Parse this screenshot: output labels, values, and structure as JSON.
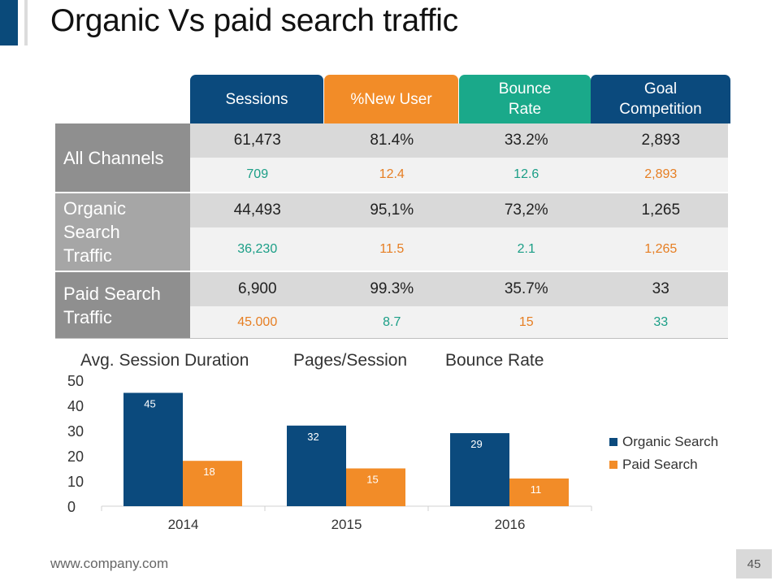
{
  "title": "Organic Vs paid search traffic",
  "colors": {
    "accent": "#0a4a7a",
    "sessions": "#0b4a7d",
    "new_user": "#f28c28",
    "bounce": "#1aa98a",
    "goal": "#0b4a7d",
    "label_dark": "#8f8f8f",
    "label_mid": "#a6a6a6",
    "organic": "#0b4a7d",
    "paid": "#f28c28"
  },
  "table": {
    "columns": [
      "Sessions",
      "%New User",
      "Bounce\nRate",
      "Goal\nCompetition"
    ],
    "rows": [
      {
        "label": "All Channels",
        "main": [
          "61,473",
          "81.4%",
          "33.2%",
          "2,893"
        ],
        "sub": [
          "709",
          "12.4",
          "12.6",
          "2,893"
        ]
      },
      {
        "label": "Organic\nSearch\nTraffic",
        "main": [
          "44,493",
          "95,1%",
          "73,2%",
          "1,265"
        ],
        "sub": [
          "36,230",
          "11.5",
          "2.1",
          "1,265"
        ]
      },
      {
        "label": "Paid Search\nTraffic",
        "main": [
          "6,900",
          "99.3%",
          "35.7%",
          "33"
        ],
        "sub": [
          "45.000",
          "8.7",
          "15",
          "33"
        ]
      }
    ]
  },
  "chart_labels": [
    "Avg. Session Duration",
    "Pages/Session",
    "Bounce Rate"
  ],
  "chart_data": {
    "type": "bar",
    "categories": [
      "2014",
      "2015",
      "2016"
    ],
    "series": [
      {
        "name": "Organic Search",
        "values": [
          45,
          32,
          29
        ]
      },
      {
        "name": "Paid Search",
        "values": [
          18,
          15,
          11
        ]
      }
    ],
    "ylim": [
      0,
      50
    ],
    "yticks": [
      "0",
      "10",
      "20",
      "30",
      "40",
      "50"
    ],
    "legend": "right",
    "grid": false
  },
  "footer": {
    "url": "www.company.com",
    "page": "45"
  }
}
